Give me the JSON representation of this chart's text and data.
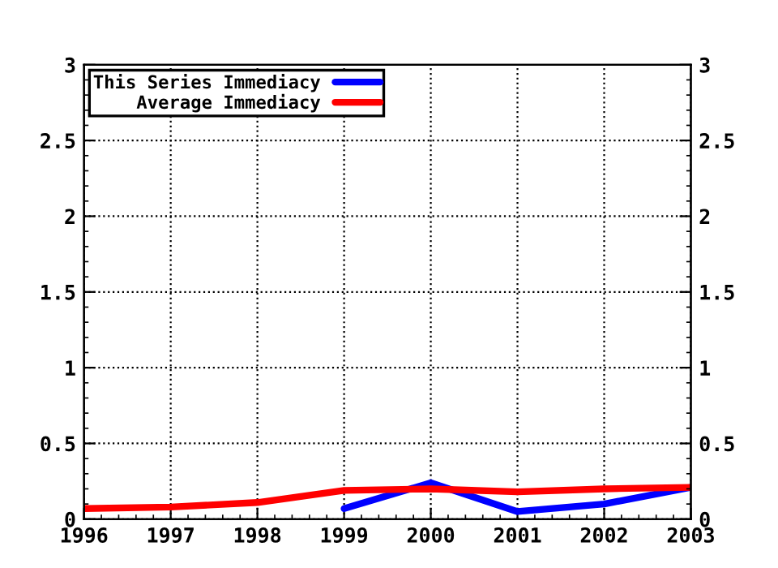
{
  "chart_data": {
    "type": "line",
    "x": [
      1996,
      1997,
      1998,
      1999,
      2000,
      2001,
      2002,
      2003
    ],
    "series": [
      {
        "name": "This Series Immediacy",
        "color": "#0000ff",
        "values": [
          null,
          null,
          null,
          0.07,
          0.24,
          0.05,
          0.1,
          0.21
        ]
      },
      {
        "name": "Average Immediacy",
        "color": "#ff0000",
        "values": [
          0.07,
          0.08,
          0.11,
          0.19,
          0.2,
          0.18,
          0.2,
          0.21
        ]
      }
    ],
    "xlim": [
      1996,
      2003
    ],
    "xticks": [
      1996,
      1997,
      1998,
      1999,
      2000,
      2001,
      2002,
      2003
    ],
    "ylim": [
      0,
      3
    ],
    "yticks": [
      0,
      {
        "value": 0.5,
        "label": "0.5"
      },
      1,
      {
        "value": 1.5,
        "label": "1.5"
      },
      2,
      {
        "value": 2.5,
        "label": "2.5"
      },
      3
    ],
    "y2lim": [
      0,
      3
    ],
    "y2ticks": [
      0,
      {
        "value": 0.5,
        "label": "0.5"
      },
      1,
      {
        "value": 1.5,
        "label": "1.5"
      },
      2,
      {
        "value": 2.5,
        "label": "2.5"
      },
      3
    ],
    "grid": true,
    "legend": "top left",
    "marker": "none",
    "line_style": "solid"
  }
}
